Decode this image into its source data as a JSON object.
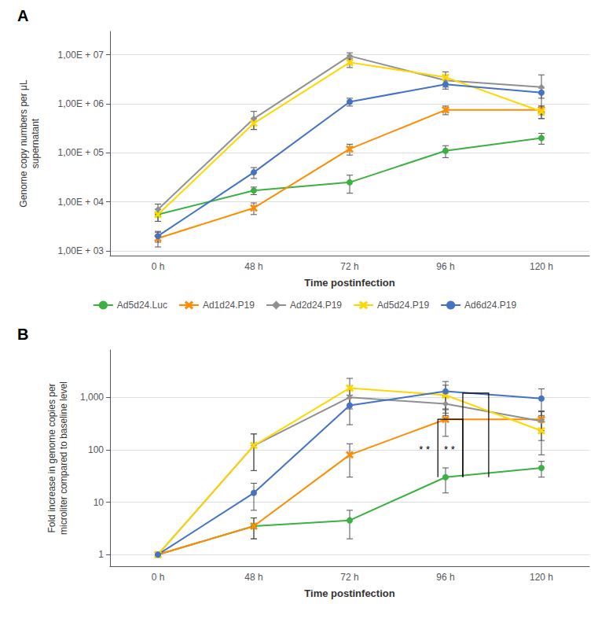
{
  "chart_data": [
    {
      "type": "line",
      "panel_label": "A",
      "xlabel": "Time postinfection",
      "ylabel": "Genome copy numbers per μL\nsupernatant",
      "categories": [
        "0 h",
        "48 h",
        "72 h",
        "96 h",
        "120 h"
      ],
      "log": "y",
      "grid": true,
      "legend": "bottom",
      "ylim": [
        800,
        30000000
      ],
      "yticks": [
        {
          "value": 1000,
          "label": "1,00E + 03"
        },
        {
          "value": 10000,
          "label": "1,00E + 04"
        },
        {
          "value": 100000,
          "label": "1,00E + 05"
        },
        {
          "value": 1000000,
          "label": "1,00E + 06"
        },
        {
          "value": 10000000,
          "label": "1,00E + 07"
        }
      ],
      "series": [
        {
          "name": "Ad5d24.Luc",
          "color": "#3CB043",
          "marker": "circle",
          "values": [
            5500,
            17000,
            25000,
            110000,
            200000
          ],
          "yerr_low": [
            1500,
            3000,
            10000,
            30000,
            50000
          ],
          "yerr_high": [
            1500,
            3000,
            10000,
            30000,
            50000
          ]
        },
        {
          "name": "Ad1d24.P19",
          "color": "#FF8C00",
          "marker": "x",
          "values": [
            1800,
            7500,
            120000,
            750000,
            750000
          ],
          "yerr_low": [
            600,
            2000,
            30000,
            150000,
            150000
          ],
          "yerr_high": [
            600,
            2000,
            30000,
            150000,
            150000
          ]
        },
        {
          "name": "Ad2d24.P19",
          "color": "#909090",
          "marker": "diamond",
          "values": [
            7000,
            500000,
            9500000,
            3000000,
            2200000
          ],
          "yerr_low": [
            2000,
            200000,
            1500000,
            800000,
            1700000
          ],
          "yerr_high": [
            2000,
            200000,
            1500000,
            800000,
            1700000
          ]
        },
        {
          "name": "Ad5d24.P19",
          "color": "#FFD700",
          "marker": "x",
          "values": [
            5500,
            400000,
            7000000,
            3500000,
            700000
          ],
          "yerr_low": [
            1500,
            100000,
            1500000,
            1000000,
            200000
          ],
          "yerr_high": [
            1500,
            100000,
            1500000,
            1000000,
            200000
          ]
        },
        {
          "name": "Ad6d24.P19",
          "color": "#4472C4",
          "marker": "circle",
          "values": [
            2000,
            40000,
            1100000,
            2500000,
            1700000
          ],
          "yerr_low": [
            500,
            10000,
            200000,
            500000,
            400000
          ],
          "yerr_high": [
            500,
            10000,
            200000,
            500000,
            400000
          ]
        }
      ]
    },
    {
      "type": "line",
      "panel_label": "B",
      "xlabel": "Time postinfection",
      "ylabel": "Fold increase in genome copies per\nmicroliter compared to baseline level",
      "categories": [
        "0 h",
        "48 h",
        "72 h",
        "96 h",
        "120 h"
      ],
      "log": "y",
      "grid": true,
      "ylim": [
        0.6,
        8000
      ],
      "yticks": [
        1,
        10,
        100,
        {
          "value": 1000,
          "label": "1,000"
        }
      ],
      "series": [
        {
          "name": "Ad5d24.Luc",
          "color": "#3CB043",
          "marker": "circle",
          "values": [
            1,
            3.5,
            4.5,
            30,
            45
          ],
          "yerr_low": [
            0,
            1.5,
            2.5,
            15,
            15
          ],
          "yerr_high": [
            0,
            1.5,
            2.5,
            15,
            15
          ]
        },
        {
          "name": "Ad1d24.P19",
          "color": "#FF8C00",
          "marker": "x",
          "values": [
            1,
            3.5,
            80,
            380,
            380
          ],
          "yerr_low": [
            0,
            1.5,
            50,
            200,
            150
          ],
          "yerr_high": [
            0,
            1.5,
            50,
            200,
            150
          ]
        },
        {
          "name": "Ad2d24.P19",
          "color": "#909090",
          "marker": "diamond",
          "values": [
            1,
            120,
            1000,
            750,
            350
          ],
          "yerr_low": [
            0,
            80,
            400,
            300,
            200
          ],
          "yerr_high": [
            0,
            80,
            400,
            300,
            200
          ]
        },
        {
          "name": "Ad5d24.P19",
          "color": "#FFD700",
          "marker": "x",
          "values": [
            1,
            120,
            1500,
            1100,
            230
          ],
          "yerr_low": [
            0,
            80,
            800,
            600,
            150
          ],
          "yerr_high": [
            0,
            80,
            800,
            600,
            150
          ]
        },
        {
          "name": "Ad6d24.P19",
          "color": "#4472C4",
          "marker": "circle",
          "values": [
            1,
            15,
            700,
            1300,
            950
          ],
          "yerr_low": [
            0,
            8,
            400,
            700,
            500
          ],
          "yerr_high": [
            0,
            8,
            400,
            700,
            500
          ]
        }
      ],
      "brackets": [
        {
          "category": "96 h",
          "low": 30,
          "high": 380,
          "label": "* *",
          "label_y": 100
        },
        {
          "category": "96 h",
          "low": 30,
          "high": 1200,
          "label": "* *",
          "label_y": 100
        }
      ]
    }
  ]
}
